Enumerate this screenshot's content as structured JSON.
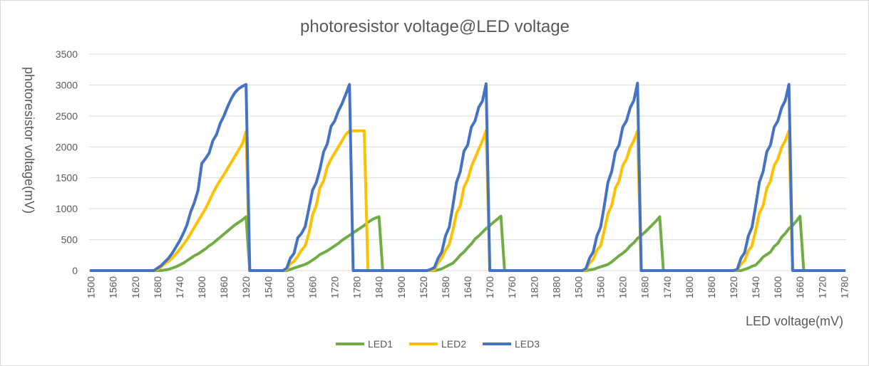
{
  "chart_data": {
    "type": "line",
    "title": "photoresistor voltage@LED voltage",
    "xlabel": "LED voltage(mV)",
    "ylabel": "photoresistor voltage(mV)",
    "ylim": [
      0,
      3500
    ],
    "yticks": [
      0,
      500,
      1000,
      1500,
      2000,
      2500,
      3000,
      3500
    ],
    "grid": true,
    "legend_position": "bottom",
    "x_tick_labels": [
      "1500",
      "1560",
      "1620",
      "1680",
      "1740",
      "1800",
      "1860",
      "1920",
      "1540",
      "1600",
      "1660",
      "1720",
      "1780",
      "1840",
      "1900",
      "1520",
      "1580",
      "1640",
      "1700",
      "1760",
      "1820",
      "1880",
      "1500",
      "1560",
      "1620",
      "1680",
      "1740",
      "1800",
      "1860",
      "1920",
      "1540",
      "1600",
      "1660",
      "1720",
      "1780",
      "1840",
      "1900"
    ],
    "cycles": [
      {
        "x": [
          1500,
          1510,
          1520,
          1530,
          1540,
          1550,
          1560,
          1570,
          1580,
          1590,
          1600,
          1610,
          1620,
          1630,
          1640,
          1650,
          1660,
          1670,
          1680,
          1690,
          1700,
          1710,
          1720,
          1730,
          1740,
          1750,
          1760,
          1770,
          1780,
          1790,
          1800,
          1810,
          1820,
          1830,
          1840,
          1850,
          1860,
          1870,
          1880,
          1890,
          1900,
          1910,
          1920,
          1930
        ],
        "LED1": [
          0,
          0,
          0,
          0,
          0,
          0,
          0,
          0,
          0,
          0,
          0,
          0,
          0,
          0,
          0,
          0,
          0,
          0,
          0,
          0,
          10,
          20,
          40,
          60,
          90,
          120,
          160,
          200,
          240,
          270,
          310,
          350,
          400,
          440,
          490,
          540,
          590,
          640,
          690,
          740,
          780,
          820,
          870,
          0
        ],
        "LED2": [
          0,
          0,
          0,
          0,
          0,
          0,
          0,
          0,
          0,
          0,
          0,
          0,
          0,
          0,
          0,
          0,
          0,
          0,
          20,
          60,
          110,
          150,
          200,
          270,
          340,
          420,
          500,
          600,
          700,
          800,
          900,
          1000,
          1120,
          1250,
          1360,
          1460,
          1550,
          1650,
          1750,
          1850,
          1950,
          2050,
          2250,
          0
        ],
        "LED3": [
          0,
          0,
          0,
          0,
          0,
          0,
          0,
          0,
          0,
          0,
          0,
          0,
          0,
          0,
          0,
          0,
          0,
          0,
          40,
          80,
          140,
          200,
          280,
          380,
          480,
          600,
          740,
          950,
          1100,
          1300,
          1730,
          1810,
          1900,
          2100,
          2200,
          2380,
          2500,
          2650,
          2780,
          2880,
          2940,
          2980,
          3010,
          0
        ]
      },
      {
        "x": [
          1540,
          1550,
          1560,
          1570,
          1580,
          1590,
          1600,
          1610,
          1620,
          1630,
          1640,
          1650,
          1660,
          1670,
          1680,
          1690,
          1700,
          1710,
          1720,
          1730,
          1740,
          1750,
          1760,
          1770,
          1780,
          1790,
          1800,
          1810,
          1820,
          1830,
          1840,
          1850,
          1860,
          1870,
          1880,
          1890,
          1900,
          1910,
          1920
        ],
        "LED1": [
          0,
          0,
          0,
          0,
          0,
          0,
          0,
          0,
          0,
          0,
          20,
          40,
          60,
          80,
          100,
          130,
          170,
          210,
          260,
          290,
          320,
          360,
          400,
          440,
          490,
          530,
          570,
          610,
          650,
          690,
          730,
          780,
          820,
          850,
          870,
          0,
          0,
          0,
          0
        ],
        "LED2": [
          0,
          0,
          0,
          0,
          0,
          0,
          0,
          0,
          0,
          20,
          110,
          150,
          230,
          330,
          400,
          600,
          900,
          1050,
          1340,
          1450,
          1680,
          1800,
          1900,
          2000,
          2100,
          2200,
          2260,
          2260,
          2260,
          2260,
          2260,
          0,
          0,
          0,
          0,
          0,
          0,
          0,
          0
        ],
        "LED3": [
          0,
          0,
          0,
          0,
          0,
          0,
          0,
          0,
          0,
          40,
          200,
          280,
          530,
          600,
          710,
          1000,
          1300,
          1420,
          1640,
          1920,
          2050,
          2330,
          2420,
          2580,
          2700,
          2850,
          3010,
          0,
          0,
          0,
          0,
          0,
          0,
          0,
          0,
          0,
          0,
          0,
          0
        ]
      },
      {
        "x": [
          1520,
          1530,
          1540,
          1550,
          1560,
          1570,
          1580,
          1590,
          1600,
          1610,
          1620,
          1630,
          1640,
          1650,
          1660,
          1670,
          1680,
          1690,
          1700,
          1710,
          1720,
          1730,
          1740,
          1750,
          1760,
          1770,
          1780,
          1790,
          1800,
          1810,
          1820,
          1830,
          1840,
          1850,
          1860,
          1870,
          1880,
          1890,
          1900
        ],
        "LED1": [
          0,
          0,
          0,
          0,
          0,
          0,
          0,
          0,
          0,
          0,
          0,
          10,
          30,
          60,
          90,
          120,
          180,
          250,
          300,
          370,
          430,
          510,
          560,
          620,
          680,
          730,
          780,
          830,
          880,
          0,
          0,
          0,
          0,
          0,
          0,
          0,
          0,
          0,
          0
        ],
        "LED2": [
          0,
          0,
          0,
          0,
          0,
          0,
          0,
          0,
          0,
          0,
          10,
          130,
          200,
          330,
          420,
          650,
          930,
          1050,
          1350,
          1470,
          1680,
          1820,
          1960,
          2100,
          2260,
          0,
          0,
          0,
          0,
          0,
          0,
          0,
          0,
          0,
          0,
          0,
          0,
          0,
          0
        ],
        "LED3": [
          0,
          0,
          0,
          0,
          0,
          0,
          0,
          0,
          0,
          20,
          50,
          200,
          300,
          560,
          700,
          1050,
          1430,
          1600,
          1930,
          2030,
          2320,
          2420,
          2640,
          2740,
          3020,
          0,
          0,
          0,
          0,
          0,
          0,
          0,
          0,
          0,
          0,
          0,
          0,
          0,
          0
        ]
      },
      {
        "x": [
          1500,
          1510,
          1520,
          1530,
          1540,
          1550,
          1560,
          1570,
          1580,
          1590,
          1600,
          1610,
          1620,
          1630,
          1640,
          1650,
          1660,
          1670,
          1680,
          1690,
          1700,
          1710,
          1720,
          1730,
          1740,
          1750,
          1760,
          1770,
          1780,
          1790,
          1800,
          1810,
          1820,
          1830,
          1840,
          1850,
          1860,
          1870,
          1880,
          1890,
          1900,
          1910,
          1920,
          1930
        ],
        "LED1": [
          0,
          0,
          0,
          0,
          0,
          0,
          0,
          0,
          0,
          0,
          0,
          0,
          0,
          10,
          20,
          40,
          60,
          80,
          100,
          140,
          190,
          240,
          280,
          330,
          400,
          450,
          520,
          570,
          620,
          680,
          740,
          800,
          870,
          0,
          0,
          0,
          0,
          0,
          0,
          0,
          0,
          0,
          0,
          0
        ],
        "LED2": [
          0,
          0,
          0,
          0,
          0,
          0,
          0,
          0,
          0,
          0,
          0,
          0,
          10,
          120,
          180,
          330,
          400,
          650,
          920,
          1050,
          1330,
          1450,
          1700,
          1800,
          1990,
          2100,
          2260,
          0,
          0,
          0,
          0,
          0,
          0,
          0,
          0,
          0,
          0,
          0,
          0,
          0,
          0,
          0,
          0,
          0
        ],
        "LED3": [
          0,
          0,
          0,
          0,
          0,
          0,
          0,
          0,
          0,
          0,
          0,
          0,
          30,
          200,
          300,
          560,
          700,
          1050,
          1430,
          1600,
          1920,
          2030,
          2320,
          2420,
          2630,
          2750,
          3030,
          0,
          0,
          0,
          0,
          0,
          0,
          0,
          0,
          0,
          0,
          0,
          0,
          0,
          0,
          0,
          0,
          0
        ]
      },
      {
        "x": [
          1540,
          1550,
          1560,
          1570,
          1580,
          1590,
          1600,
          1610,
          1620,
          1630,
          1640,
          1650,
          1660,
          1670,
          1680,
          1690,
          1700,
          1710,
          1720,
          1730,
          1740,
          1750,
          1760,
          1770,
          1780,
          1790,
          1800,
          1810,
          1820,
          1830,
          1840,
          1850,
          1860,
          1870,
          1880,
          1890,
          1900,
          1910,
          1920
        ],
        "LED1": [
          0,
          0,
          0,
          0,
          0,
          0,
          0,
          0,
          0,
          0,
          0,
          20,
          40,
          70,
          90,
          150,
          220,
          260,
          300,
          390,
          440,
          540,
          600,
          680,
          730,
          800,
          880,
          0,
          0,
          0,
          0,
          0,
          0,
          0,
          0,
          0,
          0,
          0,
          0
        ],
        "LED2": [
          0,
          0,
          0,
          0,
          0,
          0,
          0,
          0,
          0,
          10,
          100,
          160,
          320,
          400,
          650,
          930,
          1050,
          1330,
          1450,
          1700,
          1800,
          1990,
          2100,
          2260,
          0,
          0,
          0,
          0,
          0,
          0,
          0,
          0,
          0,
          0,
          0,
          0,
          0,
          0,
          0
        ],
        "LED3": [
          0,
          0,
          0,
          0,
          0,
          0,
          0,
          0,
          0,
          20,
          200,
          290,
          560,
          700,
          1050,
          1430,
          1600,
          1920,
          2030,
          2320,
          2420,
          2630,
          2750,
          3010,
          0,
          0,
          0,
          0,
          0,
          0,
          0,
          0,
          0,
          0,
          0,
          0,
          0,
          0,
          0
        ]
      }
    ],
    "series": [
      {
        "name": "LED1",
        "color": "#70ad47"
      },
      {
        "name": "LED2",
        "color": "#ffc000"
      },
      {
        "name": "LED3",
        "color": "#4472c4"
      }
    ]
  }
}
